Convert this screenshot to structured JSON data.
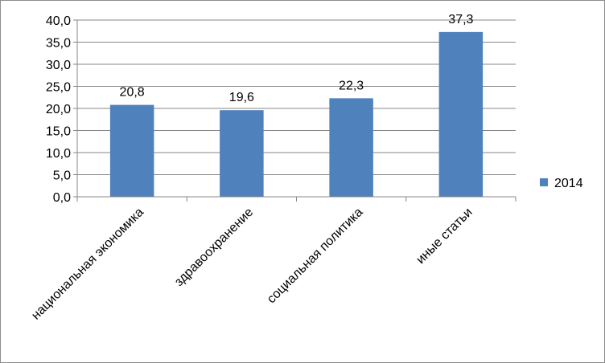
{
  "chart_data": {
    "type": "bar",
    "categories": [
      "национальная экономика",
      "здравоохранение",
      "социальная политика",
      "иные статьи"
    ],
    "series": [
      {
        "name": "2014",
        "values": [
          20.8,
          19.6,
          22.3,
          37.3
        ],
        "color": "#4f81bd"
      }
    ],
    "data_labels": [
      "20,8",
      "19,6",
      "22,3",
      "37,3"
    ],
    "ylim": [
      0,
      40
    ],
    "yticks": [
      0,
      5,
      10,
      15,
      20,
      25,
      30,
      35,
      40
    ],
    "ytick_labels": [
      "0,0",
      "5,0",
      "10,0",
      "15,0",
      "20,0",
      "25,0",
      "30,0",
      "35,0",
      "40,0"
    ],
    "grid": true,
    "grid_color": "#878787",
    "axis_color": "#878787",
    "legend_position": "right",
    "title": "",
    "xlabel": "",
    "ylabel": ""
  }
}
